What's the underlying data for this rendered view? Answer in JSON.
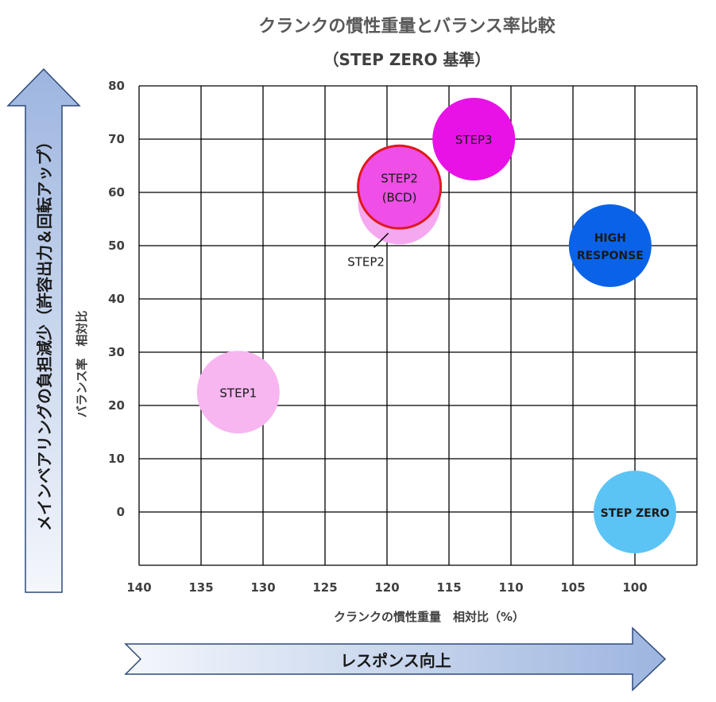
{
  "chart_data": {
    "type": "bubble",
    "title": "クランクの慣性重量とバランス率比較",
    "subtitle": "（STEP ZERO 基準）",
    "xlabel": "クランクの慣性重量　相対比（%）",
    "ylabel": "バランス率　相対比",
    "x_reversed": true,
    "xlim": [
      140,
      95
    ],
    "ylim": [
      -10,
      80
    ],
    "x_ticks": [
      140,
      135,
      130,
      125,
      120,
      115,
      110,
      105,
      100
    ],
    "y_ticks": [
      80,
      70,
      60,
      50,
      40,
      30,
      20,
      10,
      0
    ],
    "grid": true,
    "points": [
      {
        "name": "STEP1",
        "x": 132,
        "y": 22.5,
        "color": "#f7b6f0",
        "label_lines": [
          "STEP1"
        ],
        "bold": false
      },
      {
        "name": "STEP2",
        "x": 119,
        "y": 58,
        "color": "#f5a8ef",
        "label_lines": [],
        "bold": false
      },
      {
        "name": "STEP2 (BCD)",
        "x": 119,
        "y": 61,
        "color": "#ef4fe6",
        "stroke": "#e0191c",
        "label_lines": [
          "STEP2",
          "(BCD)"
        ],
        "bold": false
      },
      {
        "name": "STEP3",
        "x": 113,
        "y": 70,
        "color": "#e812e6",
        "label_lines": [
          "STEP3"
        ],
        "bold": false
      },
      {
        "name": "HIGH RESPONSE",
        "x": 102,
        "y": 50,
        "color": "#0a62e8",
        "label_lines": [
          "HIGH",
          "RESPONSE"
        ],
        "bold": true
      },
      {
        "name": "STEP ZERO",
        "x": 100,
        "y": 0,
        "color": "#5cc3f5",
        "label_lines": [
          "STEP ZERO"
        ],
        "bold": true
      }
    ],
    "callout": {
      "text": "STEP2",
      "x": 119,
      "y": 58
    }
  },
  "arrows": {
    "vertical_text": "メインベアリングの負担減少（許容出力＆回転アップ）",
    "horizontal_text": "レスポンス向上"
  }
}
